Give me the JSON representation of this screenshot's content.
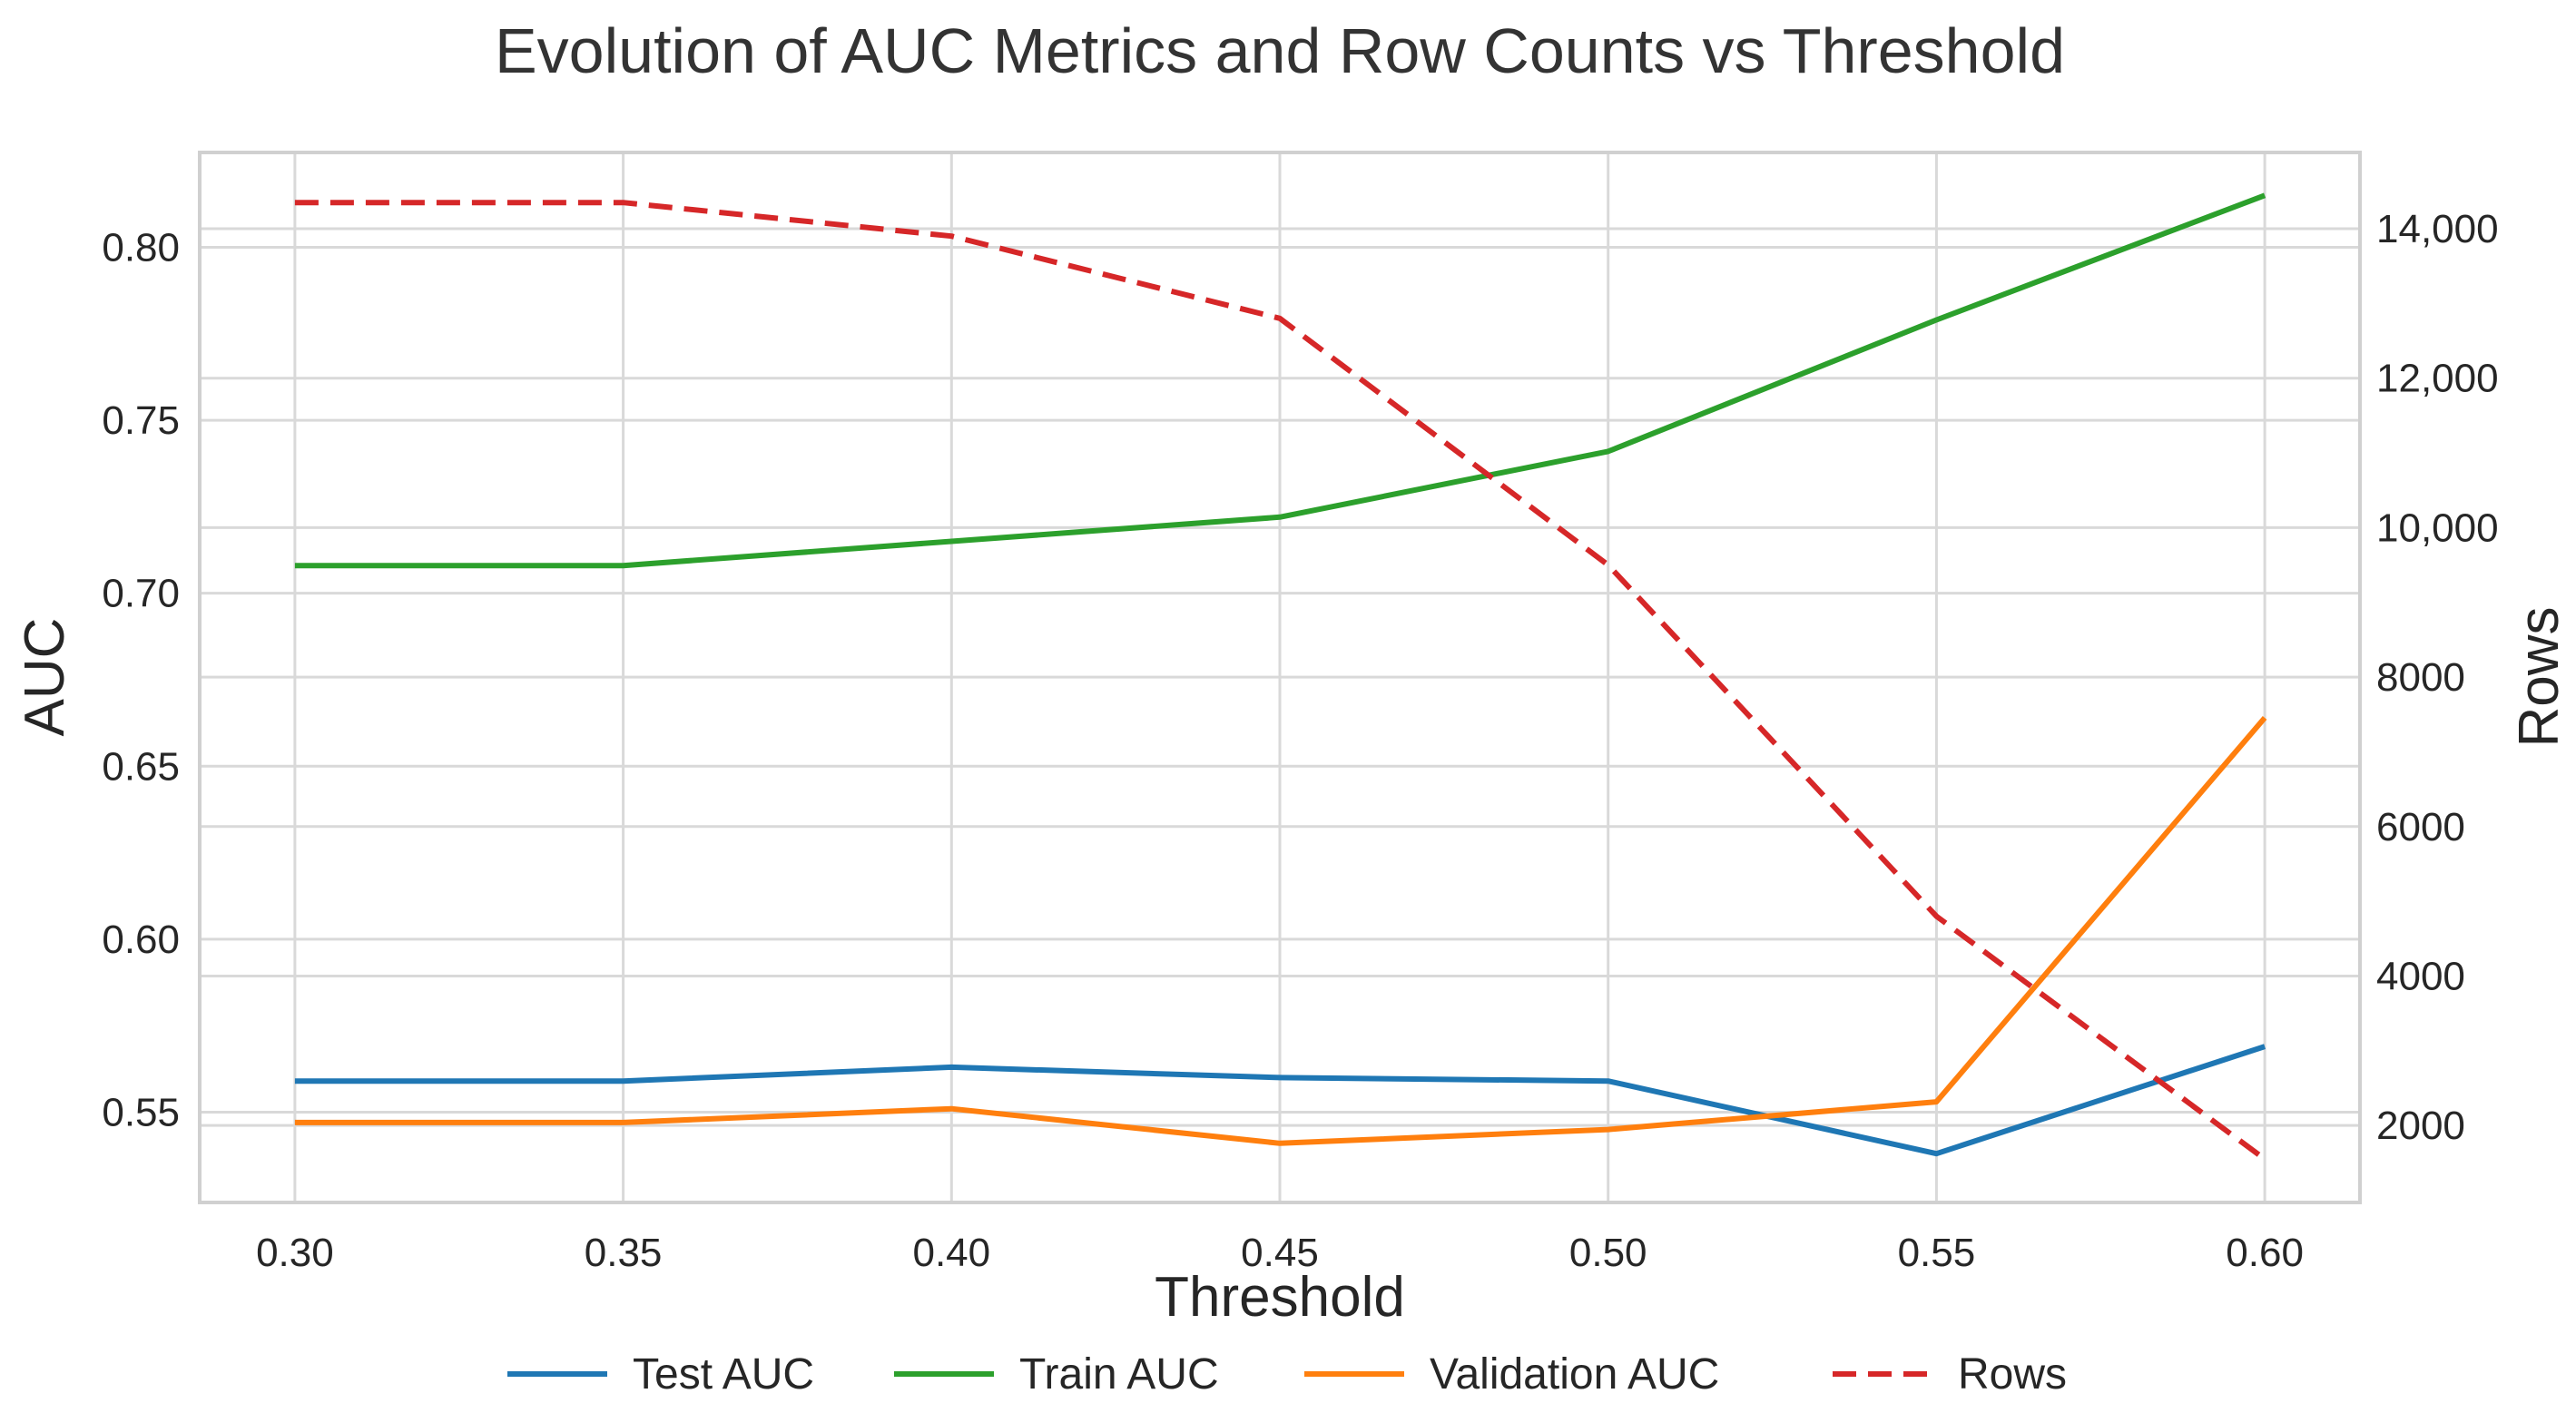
{
  "chart_data": {
    "type": "line",
    "title": "Evolution of AUC Metrics and Row Counts vs Threshold",
    "xlabel": "Threshold",
    "ylabel": "AUC",
    "y2label": "Rows",
    "x": [
      0.3,
      0.35,
      0.4,
      0.45,
      0.5,
      0.55,
      0.6
    ],
    "x_tick_labels": [
      "0.30",
      "0.35",
      "0.40",
      "0.45",
      "0.50",
      "0.55",
      "0.60"
    ],
    "xlim": [
      0.2855,
      0.6145
    ],
    "ylim": [
      0.5239,
      0.8274
    ],
    "y_ticks": [
      0.55,
      0.6,
      0.65,
      0.7,
      0.75,
      0.8
    ],
    "y_tick_labels": [
      "0.55",
      "0.60",
      "0.65",
      "0.70",
      "0.75",
      "0.80"
    ],
    "y2lim": [
      970,
      15020
    ],
    "y2_ticks": [
      2000,
      4000,
      6000,
      8000,
      10000,
      12000,
      14000
    ],
    "y2_tick_labels": [
      "2000",
      "4000",
      "6000",
      "8000",
      "10,000",
      "12,000",
      "14,000"
    ],
    "grid": true,
    "legend_position": "bottom-center",
    "series": [
      {
        "name": "Test AUC",
        "axis": "left",
        "color": "#1f77b4",
        "style": "solid",
        "values": [
          0.559,
          0.559,
          0.563,
          0.56,
          0.559,
          0.538,
          0.569
        ]
      },
      {
        "name": "Train AUC",
        "axis": "left",
        "color": "#2ca02c",
        "style": "solid",
        "values": [
          0.708,
          0.708,
          0.715,
          0.722,
          0.741,
          0.779,
          0.815
        ]
      },
      {
        "name": "Validation AUC",
        "axis": "left",
        "color": "#ff7f0e",
        "style": "solid",
        "values": [
          0.547,
          0.547,
          0.551,
          0.541,
          0.545,
          0.553,
          0.664
        ]
      },
      {
        "name": "Rows",
        "axis": "right",
        "color": "#d62728",
        "style": "dashed",
        "values": [
          14350,
          14350,
          13900,
          12800,
          9500,
          4800,
          1550
        ]
      }
    ]
  }
}
